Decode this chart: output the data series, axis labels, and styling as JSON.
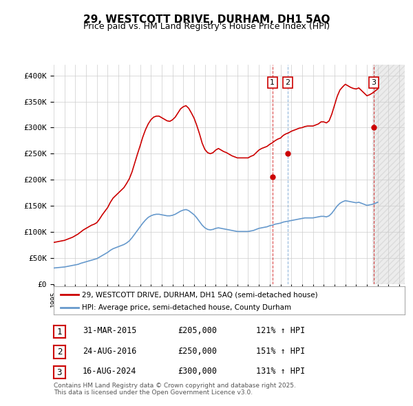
{
  "title": "29, WESTCOTT DRIVE, DURHAM, DH1 5AQ",
  "subtitle": "Price paid vs. HM Land Registry's House Price Index (HPI)",
  "ylabel_ticks": [
    "£0",
    "£50K",
    "£100K",
    "£150K",
    "£200K",
    "£250K",
    "£300K",
    "£350K",
    "£400K"
  ],
  "ytick_values": [
    0,
    50000,
    100000,
    150000,
    200000,
    250000,
    300000,
    350000,
    400000
  ],
  "ylim": [
    0,
    420000
  ],
  "xlim_start": 1995.0,
  "xlim_end": 2027.5,
  "hpi_color": "#6699cc",
  "price_color": "#cc0000",
  "sale_color": "#cc0000",
  "legend_label_price": "29, WESTCOTT DRIVE, DURHAM, DH1 5AQ (semi-detached house)",
  "legend_label_hpi": "HPI: Average price, semi-detached house, County Durham",
  "sales": [
    {
      "date": 2015.25,
      "price": 205000,
      "label": "1",
      "date_str": "31-MAR-2015",
      "pct": "121% ↑ HPI"
    },
    {
      "date": 2016.65,
      "price": 250000,
      "label": "2",
      "date_str": "24-AUG-2016",
      "pct": "151% ↑ HPI"
    },
    {
      "date": 2024.63,
      "price": 300000,
      "label": "3",
      "date_str": "16-AUG-2024",
      "pct": "131% ↑ HPI"
    }
  ],
  "footnote": "Contains HM Land Registry data © Crown copyright and database right 2025.\nThis data is licensed under the Open Government Licence v3.0.",
  "background_color": "#ffffff",
  "grid_color": "#cccccc",
  "hpi_data_x": [
    1995.0,
    1995.25,
    1995.5,
    1995.75,
    1996.0,
    1996.25,
    1996.5,
    1996.75,
    1997.0,
    1997.25,
    1997.5,
    1997.75,
    1998.0,
    1998.25,
    1998.5,
    1998.75,
    1999.0,
    1999.25,
    1999.5,
    1999.75,
    2000.0,
    2000.25,
    2000.5,
    2000.75,
    2001.0,
    2001.25,
    2001.5,
    2001.75,
    2002.0,
    2002.25,
    2002.5,
    2002.75,
    2003.0,
    2003.25,
    2003.5,
    2003.75,
    2004.0,
    2004.25,
    2004.5,
    2004.75,
    2005.0,
    2005.25,
    2005.5,
    2005.75,
    2006.0,
    2006.25,
    2006.5,
    2006.75,
    2007.0,
    2007.25,
    2007.5,
    2007.75,
    2008.0,
    2008.25,
    2008.5,
    2008.75,
    2009.0,
    2009.25,
    2009.5,
    2009.75,
    2010.0,
    2010.25,
    2010.5,
    2010.75,
    2011.0,
    2011.25,
    2011.5,
    2011.75,
    2012.0,
    2012.25,
    2012.5,
    2012.75,
    2013.0,
    2013.25,
    2013.5,
    2013.75,
    2014.0,
    2014.25,
    2014.5,
    2014.75,
    2015.0,
    2015.25,
    2015.5,
    2015.75,
    2016.0,
    2016.25,
    2016.5,
    2016.75,
    2017.0,
    2017.25,
    2017.5,
    2017.75,
    2018.0,
    2018.25,
    2018.5,
    2018.75,
    2019.0,
    2019.25,
    2019.5,
    2019.75,
    2020.0,
    2020.25,
    2020.5,
    2020.75,
    2021.0,
    2021.25,
    2021.5,
    2021.75,
    2022.0,
    2022.25,
    2022.5,
    2022.75,
    2023.0,
    2023.25,
    2023.5,
    2023.75,
    2024.0,
    2024.25,
    2024.5,
    2024.75,
    2025.0
  ],
  "hpi_data_y": [
    31000,
    31500,
    32000,
    32500,
    33000,
    34000,
    35000,
    36000,
    37000,
    38000,
    40000,
    41500,
    43000,
    44500,
    46000,
    47500,
    49000,
    52000,
    55000,
    58000,
    61000,
    65000,
    68000,
    70000,
    72000,
    74000,
    76000,
    79000,
    83000,
    89000,
    96000,
    103000,
    110000,
    117000,
    123000,
    128000,
    131000,
    133000,
    134000,
    134000,
    133000,
    132000,
    131000,
    131000,
    132000,
    134000,
    137000,
    140000,
    142000,
    143000,
    141000,
    137000,
    133000,
    127000,
    120000,
    113000,
    108000,
    105000,
    104000,
    105000,
    107000,
    108000,
    107000,
    106000,
    105000,
    104000,
    103000,
    102000,
    101000,
    101000,
    101000,
    101000,
    101000,
    102000,
    103000,
    105000,
    107000,
    108000,
    109000,
    110000,
    112000,
    113000,
    115000,
    116000,
    117000,
    119000,
    120000,
    121000,
    122000,
    123000,
    124000,
    125000,
    126000,
    127000,
    127000,
    127000,
    127000,
    128000,
    129000,
    130000,
    130000,
    129000,
    131000,
    136000,
    143000,
    150000,
    155000,
    158000,
    160000,
    159000,
    158000,
    157000,
    156000,
    157000,
    155000,
    153000,
    151000,
    152000,
    153000,
    155000,
    157000
  ],
  "price_data_x": [
    1995.0,
    1995.25,
    1995.5,
    1995.75,
    1996.0,
    1996.25,
    1996.5,
    1996.75,
    1997.0,
    1997.25,
    1997.5,
    1997.75,
    1998.0,
    1998.25,
    1998.5,
    1998.75,
    1999.0,
    1999.25,
    1999.5,
    1999.75,
    2000.0,
    2000.25,
    2000.5,
    2000.75,
    2001.0,
    2001.25,
    2001.5,
    2001.75,
    2002.0,
    2002.25,
    2002.5,
    2002.75,
    2003.0,
    2003.25,
    2003.5,
    2003.75,
    2004.0,
    2004.25,
    2004.5,
    2004.75,
    2005.0,
    2005.25,
    2005.5,
    2005.75,
    2006.0,
    2006.25,
    2006.5,
    2006.75,
    2007.0,
    2007.25,
    2007.5,
    2007.75,
    2008.0,
    2008.25,
    2008.5,
    2008.75,
    2009.0,
    2009.25,
    2009.5,
    2009.75,
    2010.0,
    2010.25,
    2010.5,
    2010.75,
    2011.0,
    2011.25,
    2011.5,
    2011.75,
    2012.0,
    2012.25,
    2012.5,
    2012.75,
    2013.0,
    2013.25,
    2013.5,
    2013.75,
    2014.0,
    2014.25,
    2014.5,
    2014.75,
    2015.0,
    2015.25,
    2015.5,
    2015.75,
    2016.0,
    2016.25,
    2016.5,
    2016.75,
    2017.0,
    2017.25,
    2017.5,
    2017.75,
    2018.0,
    2018.25,
    2018.5,
    2018.75,
    2019.0,
    2019.25,
    2019.5,
    2019.75,
    2020.0,
    2020.25,
    2020.5,
    2020.75,
    2021.0,
    2021.25,
    2021.5,
    2021.75,
    2022.0,
    2022.25,
    2022.5,
    2022.75,
    2023.0,
    2023.25,
    2023.5,
    2023.75,
    2024.0,
    2024.25,
    2024.5,
    2024.75,
    2025.0
  ],
  "price_data_y": [
    80000,
    81000,
    82000,
    83000,
    84000,
    86000,
    88000,
    90000,
    93000,
    96000,
    100000,
    104000,
    107000,
    110000,
    113000,
    115000,
    118000,
    125000,
    133000,
    140000,
    147000,
    157000,
    165000,
    170000,
    175000,
    180000,
    185000,
    193000,
    202000,
    215000,
    232000,
    249000,
    265000,
    282000,
    296000,
    307000,
    315000,
    320000,
    322000,
    322000,
    319000,
    316000,
    313000,
    312000,
    315000,
    320000,
    328000,
    336000,
    340000,
    342000,
    337000,
    328000,
    318000,
    304000,
    288000,
    270000,
    258000,
    252000,
    250000,
    252000,
    257000,
    260000,
    257000,
    254000,
    252000,
    249000,
    246000,
    244000,
    242000,
    242000,
    242000,
    242000,
    242000,
    245000,
    247000,
    252000,
    257000,
    260000,
    262000,
    264000,
    268000,
    271000,
    275000,
    278000,
    280000,
    285000,
    288000,
    290000,
    293000,
    295000,
    297000,
    299000,
    300000,
    302000,
    303000,
    303000,
    303000,
    305000,
    307000,
    311000,
    311000,
    309000,
    313000,
    326000,
    343000,
    360000,
    372000,
    378000,
    383000,
    380000,
    377000,
    375000,
    374000,
    376000,
    371000,
    366000,
    361000,
    363000,
    366000,
    370000,
    374000
  ]
}
